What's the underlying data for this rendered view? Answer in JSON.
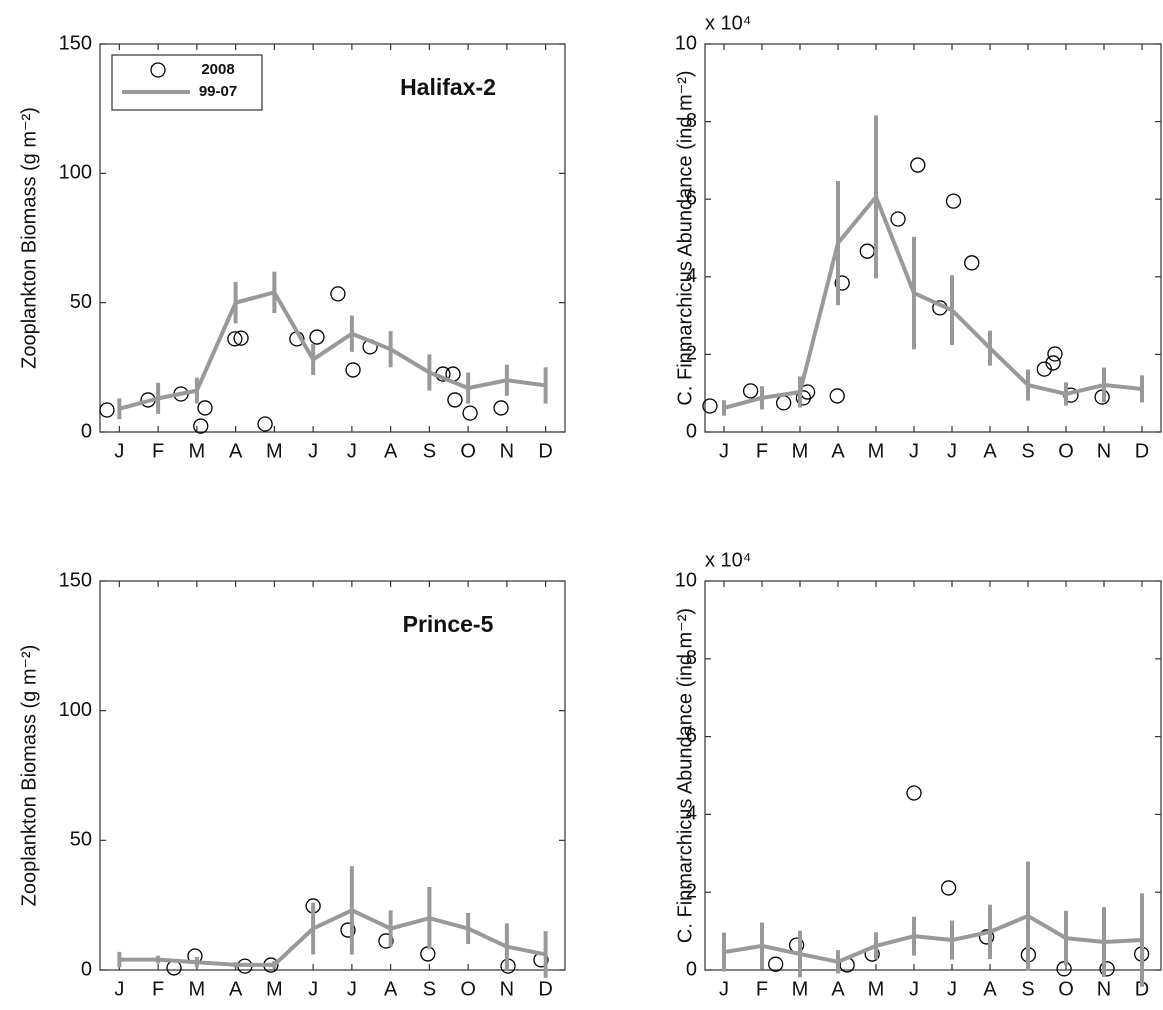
{
  "chart_data": [
    {
      "type": "line",
      "annotation": "Halifax-2",
      "ylabel": "Zooplankton Biomass (g m⁻²)",
      "legend": "upper left",
      "xlim": [
        0,
        12
      ],
      "xticks": [
        {
          "value": 0.5,
          "label": "J"
        },
        {
          "value": 1.5,
          "label": "F"
        },
        {
          "value": 2.5,
          "label": "M"
        },
        {
          "value": 3.5,
          "label": "A"
        },
        {
          "value": 4.5,
          "label": "M"
        },
        {
          "value": 5.5,
          "label": "J"
        },
        {
          "value": 6.5,
          "label": "J"
        },
        {
          "value": 7.5,
          "label": "A"
        },
        {
          "value": 8.5,
          "label": "S"
        },
        {
          "value": 9.5,
          "label": "O"
        },
        {
          "value": 10.5,
          "label": "N"
        },
        {
          "value": 11.5,
          "label": "D"
        }
      ],
      "ylim": [
        0,
        150
      ],
      "yticks": [
        0,
        50,
        100,
        150
      ],
      "series": [
        {
          "name": "2008",
          "mode": "markers",
          "color": "#000000",
          "x": [
            0.18,
            1.24,
            2.09,
            2.6,
            2.71,
            3.48,
            3.64,
            4.26,
            5.08,
            5.6,
            6.14,
            6.53,
            6.97,
            8.85,
            9.11,
            9.16,
            9.55,
            10.35
          ],
          "values": [
            8.5,
            12.4,
            14.7,
            2.3,
            9.3,
            36,
            36.3,
            3.1,
            36,
            36.7,
            53.4,
            24,
            32.9,
            22.4,
            22.4,
            12.4,
            7.3,
            9.3
          ]
        },
        {
          "name": "99-07",
          "mode": "lines",
          "color": "#999999",
          "x": [
            0.5,
            1.5,
            2.5,
            3.5,
            4.5,
            5.5,
            6.5,
            7.5,
            8.5,
            9.5,
            10.5,
            11.5
          ],
          "values": [
            9,
            13,
            16,
            50,
            54,
            28,
            38,
            32,
            23,
            17,
            20,
            18
          ],
          "errors": [
            4,
            6,
            5,
            8,
            8,
            6,
            7,
            7,
            7,
            6,
            6,
            7
          ]
        }
      ]
    },
    {
      "type": "line",
      "ylabel": "C. Finmarchicus Abundance (ind m⁻²)",
      "y_multiplier": "x 10⁴",
      "xlim": [
        0,
        12
      ],
      "xticks": [
        {
          "value": 0.5,
          "label": "J"
        },
        {
          "value": 1.5,
          "label": "F"
        },
        {
          "value": 2.5,
          "label": "M"
        },
        {
          "value": 3.5,
          "label": "A"
        },
        {
          "value": 4.5,
          "label": "M"
        },
        {
          "value": 5.5,
          "label": "J"
        },
        {
          "value": 6.5,
          "label": "J"
        },
        {
          "value": 7.5,
          "label": "A"
        },
        {
          "value": 8.5,
          "label": "S"
        },
        {
          "value": 9.5,
          "label": "O"
        },
        {
          "value": 10.5,
          "label": "N"
        },
        {
          "value": 11.5,
          "label": "D"
        }
      ],
      "ylim": [
        0,
        10
      ],
      "yticks": [
        0,
        2,
        4,
        6,
        8,
        10
      ],
      "series": [
        {
          "mode": "markers",
          "color": "#000000",
          "x": [
            0.13,
            1.2,
            2.07,
            2.59,
            2.7,
            3.48,
            3.61,
            4.27,
            5.08,
            5.6,
            6.18,
            6.54,
            7.02,
            8.93,
            9.16,
            9.21,
            9.63,
            10.45
          ],
          "values": [
            0.67,
            1.06,
            0.75,
            0.88,
            1.03,
            0.93,
            3.84,
            4.66,
            5.49,
            6.88,
            3.2,
            5.95,
            4.36,
            1.62,
            1.78,
            2.01,
            0.95,
            0.9
          ]
        },
        {
          "mode": "lines",
          "color": "#999999",
          "x": [
            0.5,
            1.5,
            2.5,
            3.5,
            4.5,
            5.5,
            6.5,
            7.5,
            8.5,
            9.5,
            10.5,
            11.5
          ],
          "values": [
            0.62,
            0.88,
            1.03,
            4.87,
            6.06,
            3.58,
            3.14,
            2.16,
            1.21,
            0.98,
            1.21,
            1.11
          ],
          "errors": [
            0.2,
            0.3,
            0.4,
            1.6,
            2.1,
            1.45,
            0.9,
            0.45,
            0.4,
            0.3,
            0.45,
            0.35
          ]
        }
      ]
    },
    {
      "type": "line",
      "annotation": "Prince-5",
      "ylabel": "Zooplankton Biomass (g m⁻²)",
      "xlim": [
        0,
        12
      ],
      "xticks": [
        {
          "value": 0.5,
          "label": "J"
        },
        {
          "value": 1.5,
          "label": "F"
        },
        {
          "value": 2.5,
          "label": "M"
        },
        {
          "value": 3.5,
          "label": "A"
        },
        {
          "value": 4.5,
          "label": "M"
        },
        {
          "value": 5.5,
          "label": "J"
        },
        {
          "value": 6.5,
          "label": "J"
        },
        {
          "value": 7.5,
          "label": "A"
        },
        {
          "value": 8.5,
          "label": "S"
        },
        {
          "value": 9.5,
          "label": "O"
        },
        {
          "value": 10.5,
          "label": "N"
        },
        {
          "value": 11.5,
          "label": "D"
        }
      ],
      "ylim": [
        0,
        150
      ],
      "yticks": [
        0,
        50,
        100,
        150
      ],
      "series": [
        {
          "mode": "markers",
          "color": "#000000",
          "x": [
            1.91,
            2.45,
            3.74,
            4.41,
            5.5,
            6.4,
            7.38,
            8.46,
            10.53,
            11.38
          ],
          "values": [
            0.8,
            5.4,
            1.5,
            1.9,
            24.7,
            15.4,
            11.2,
            6.2,
            1.5,
            3.9
          ]
        },
        {
          "mode": "lines",
          "color": "#999999",
          "x": [
            0.5,
            1.5,
            2.5,
            3.5,
            4.5,
            5.5,
            6.5,
            7.5,
            8.5,
            9.5,
            10.5,
            11.5
          ],
          "values": [
            4,
            4,
            3,
            2,
            2,
            16,
            23,
            16,
            20,
            16,
            9,
            6
          ],
          "errors": [
            3,
            1.5,
            2,
            1,
            1.5,
            10,
            17,
            7,
            12,
            6,
            9,
            9
          ]
        }
      ]
    },
    {
      "type": "line",
      "ylabel": "C. Finmarchicus Abundance (ind m⁻²)",
      "y_multiplier": "x 10⁴",
      "xlim": [
        0,
        12
      ],
      "xticks": [
        {
          "value": 0.5,
          "label": "J"
        },
        {
          "value": 1.5,
          "label": "F"
        },
        {
          "value": 2.5,
          "label": "M"
        },
        {
          "value": 3.5,
          "label": "A"
        },
        {
          "value": 4.5,
          "label": "M"
        },
        {
          "value": 5.5,
          "label": "J"
        },
        {
          "value": 6.5,
          "label": "J"
        },
        {
          "value": 7.5,
          "label": "A"
        },
        {
          "value": 8.5,
          "label": "S"
        },
        {
          "value": 9.5,
          "label": "O"
        },
        {
          "value": 10.5,
          "label": "N"
        },
        {
          "value": 11.5,
          "label": "D"
        }
      ],
      "ylim": [
        0,
        10
      ],
      "yticks": [
        0,
        2,
        4,
        6,
        8,
        10
      ],
      "series": [
        {
          "mode": "markers",
          "color": "#000000",
          "x": [
            1.86,
            2.41,
            3.74,
            4.4,
            5.5,
            6.41,
            7.41,
            8.51,
            9.45,
            10.58,
            11.49
          ],
          "values": [
            0.15,
            0.64,
            0.13,
            0.41,
            4.55,
            2.11,
            0.85,
            0.39,
            0.03,
            0.03,
            0.41
          ]
        },
        {
          "mode": "lines",
          "color": "#999999",
          "x": [
            0.5,
            1.5,
            2.5,
            3.5,
            4.5,
            5.5,
            6.5,
            7.5,
            8.5,
            9.5,
            10.5,
            11.5
          ],
          "values": [
            0.46,
            0.62,
            0.41,
            0.21,
            0.62,
            0.87,
            0.77,
            0.98,
            1.39,
            0.82,
            0.72,
            0.77
          ],
          "errors": [
            0.5,
            0.6,
            0.6,
            0.3,
            0.35,
            0.5,
            0.5,
            0.7,
            1.4,
            0.7,
            0.9,
            1.2
          ]
        }
      ]
    }
  ]
}
